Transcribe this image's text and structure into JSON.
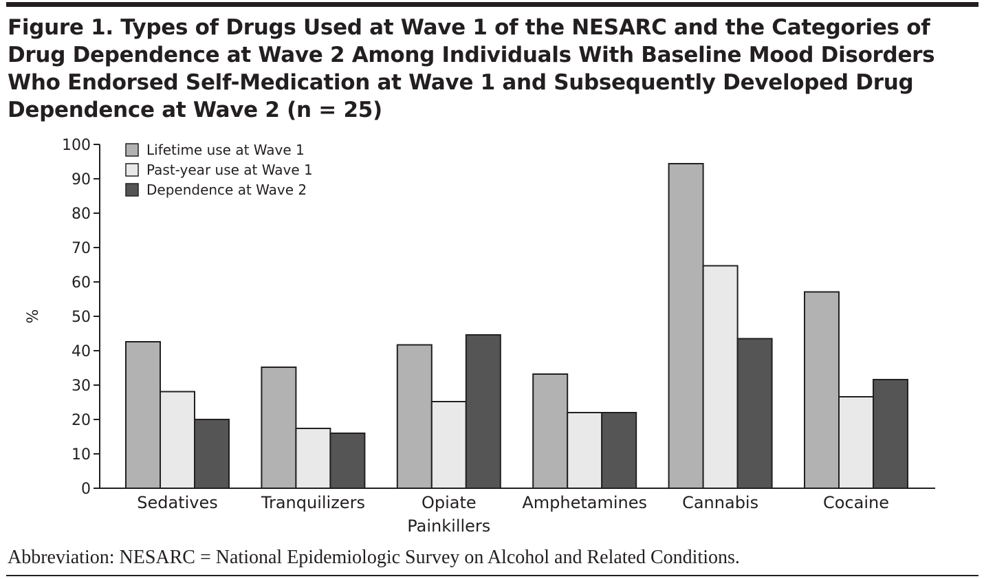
{
  "header": {
    "title": "Figure 1. Types of Drugs Used at Wave 1 of the NESARC and the Categories of\nDrug Dependence at Wave 2 Among Individuals With Baseline Mood Disorders\nWho Endorsed Self-Medication at Wave 1 and Subsequently Developed Drug\nDependence at Wave 2 (n = 25)"
  },
  "footer": {
    "note": "Abbreviation: NESARC = National Epidemiologic Survey on Alcohol and Related Conditions."
  },
  "chart_data": {
    "type": "bar",
    "ylabel": "%",
    "xlabel": "",
    "ylim": [
      0,
      100
    ],
    "yticks": [
      0,
      10,
      20,
      30,
      40,
      50,
      60,
      70,
      80,
      90,
      100
    ],
    "categories": [
      "Sedatives",
      "Tranquilizers",
      "Opiate\nPainkillers",
      "Amphetamines",
      "Cannabis",
      "Cocaine"
    ],
    "series": [
      {
        "name": "Lifetime use at Wave 1",
        "color": "#b2b2b2",
        "values": [
          42.6,
          35.2,
          41.7,
          33.2,
          94.4,
          57.1
        ]
      },
      {
        "name": "Past-year use at Wave 1",
        "color": "#e9e9e9",
        "values": [
          28.1,
          17.4,
          25.2,
          22.0,
          64.7,
          26.6
        ]
      },
      {
        "name": "Dependence at Wave 2",
        "color": "#555555",
        "values": [
          20.0,
          16.0,
          44.6,
          22.0,
          43.5,
          31.6
        ]
      }
    ],
    "legend_position": "top-left",
    "grid": false
  }
}
